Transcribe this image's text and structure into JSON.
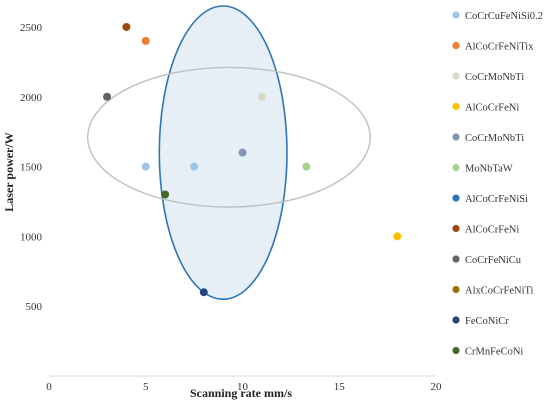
{
  "chart_data": {
    "type": "scatter",
    "title": "",
    "xlabel": "Scanning rate  mm/s",
    "ylabel": "Laser power/W",
    "xlim": [
      0,
      20
    ],
    "ylim": [
      0,
      2650
    ],
    "xticks": [
      0,
      5,
      10,
      15,
      20
    ],
    "yticks": [
      500,
      1000,
      1500,
      2000,
      2500
    ],
    "grid": false,
    "legend_position": "right",
    "series": [
      {
        "name": "CoCrCuFeNiSi0.2",
        "color": "#9dc3e6",
        "points": [
          [
            5,
            1500
          ],
          [
            7.5,
            1500
          ]
        ]
      },
      {
        "name": "AlCoCrFeNiTix",
        "color": "#ed7d31",
        "points": [
          [
            5,
            2400
          ]
        ]
      },
      {
        "name": "CoCrMoNbTi",
        "color": "#d9d9c6",
        "points": [
          [
            11,
            2000
          ]
        ]
      },
      {
        "name": "AlCoCrFeNi",
        "color": "#ffc000",
        "points": [
          [
            18,
            1000
          ]
        ]
      },
      {
        "name": "CoCrMoNbTi",
        "color": "#8497b0",
        "points": [
          [
            10,
            1600
          ]
        ]
      },
      {
        "name": "MoNbTaW",
        "color": "#a9d18e",
        "points": [
          [
            13.3,
            1500
          ]
        ]
      },
      {
        "name": "AlCoCrFeNiSi",
        "color": "#2e75b6",
        "points": []
      },
      {
        "name": "AlCoCrFeNi",
        "color": "#9e480e",
        "points": [
          [
            4,
            2500
          ]
        ]
      },
      {
        "name": "CoCrFeNiCu",
        "color": "#636363",
        "points": [
          [
            3,
            2000
          ]
        ]
      },
      {
        "name": "AlxCoCrFeNiTi",
        "color": "#997300",
        "points": []
      },
      {
        "name": "FeCoNiCr",
        "color": "#264478",
        "points": [
          [
            8,
            600
          ]
        ]
      },
      {
        "name": "CrMnFeCoNi",
        "color": "#43682b",
        "points": [
          [
            6,
            1300
          ]
        ]
      }
    ],
    "annotations": [
      {
        "shape": "ellipse",
        "stroke": "#2e75b6",
        "fill": "#dde9f2",
        "center": [
          9,
          1600
        ],
        "radii": [
          3.3,
          1050
        ]
      },
      {
        "shape": "ellipse",
        "stroke": "#bfbfbf",
        "fill": "none",
        "center": [
          9.3,
          1710
        ],
        "radii": [
          7.3,
          500
        ]
      }
    ]
  }
}
